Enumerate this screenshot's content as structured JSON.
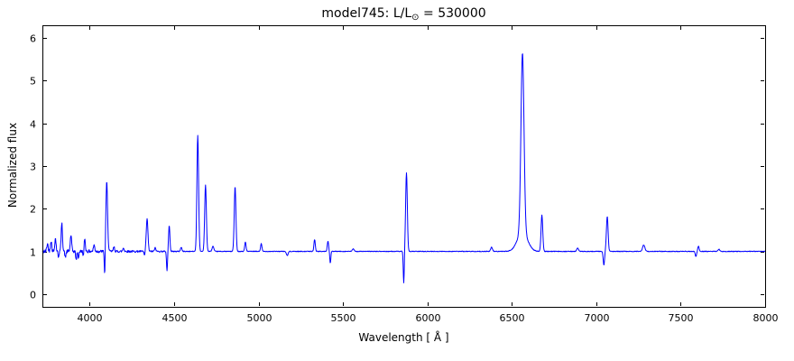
{
  "title": {
    "prefix": "model745: L/L",
    "odot": "⊙",
    "suffix": " = 530000"
  },
  "chart_data": {
    "type": "line",
    "title": "model745: L/L⊙ = 530000",
    "xlabel": "Wavelength [ Å ]",
    "ylabel": "Normalized flux",
    "xlim": [
      3720,
      8000
    ],
    "ylim": [
      -0.3,
      6.3
    ],
    "xticks": [
      4000,
      4500,
      5000,
      5500,
      6000,
      6500,
      7000,
      7500,
      8000
    ],
    "yticks": [
      0,
      1,
      2,
      3,
      4,
      5,
      6
    ],
    "grid": false,
    "legend": "none",
    "line_color": "#0000ff",
    "continuum": 1.0,
    "resolution_angstrom": 2,
    "noise": {
      "seed": 42,
      "base_amp": 0.008,
      "blue_amp": 0.04,
      "blue_cutoff": 4600
    },
    "features": [
      {
        "center": 3750,
        "amp": 0.18,
        "sigma": 4
      },
      {
        "center": 3771,
        "amp": 0.25,
        "sigma": 4
      },
      {
        "center": 3797,
        "amp": 0.3,
        "sigma": 4
      },
      {
        "center": 3815,
        "amp": -0.12,
        "sigma": 3
      },
      {
        "center": 3835,
        "amp": 0.65,
        "sigma": 4
      },
      {
        "center": 3856,
        "amp": -0.15,
        "sigma": 3
      },
      {
        "center": 3889,
        "amp": 0.38,
        "sigma": 4
      },
      {
        "center": 3920,
        "amp": -0.2,
        "sigma": 3
      },
      {
        "center": 3933,
        "amp": -0.15,
        "sigma": 3
      },
      {
        "center": 3964,
        "amp": -0.18,
        "sigma": 3
      },
      {
        "center": 3970,
        "amp": 0.32,
        "sigma": 4
      },
      {
        "center": 4026,
        "amp": 0.15,
        "sigma": 4
      },
      {
        "center": 4089,
        "amp": -0.62,
        "sigma": 2.5
      },
      {
        "center": 4101,
        "amp": 1.62,
        "sigma": 5
      },
      {
        "center": 4144,
        "amp": 0.1,
        "sigma": 4
      },
      {
        "center": 4200,
        "amp": 0.08,
        "sigma": 4
      },
      {
        "center": 4325,
        "amp": -0.1,
        "sigma": 3
      },
      {
        "center": 4340,
        "amp": 0.76,
        "sigma": 5
      },
      {
        "center": 4388,
        "amp": 0.08,
        "sigma": 4
      },
      {
        "center": 4458,
        "amp": -0.45,
        "sigma": 3
      },
      {
        "center": 4471,
        "amp": 0.6,
        "sigma": 4
      },
      {
        "center": 4542,
        "amp": 0.1,
        "sigma": 4
      },
      {
        "center": 4640,
        "amp": 2.72,
        "sigma": 5
      },
      {
        "center": 4686,
        "amp": 1.55,
        "sigma": 5
      },
      {
        "center": 4730,
        "amp": 0.12,
        "sigma": 5
      },
      {
        "center": 4861,
        "amp": 1.52,
        "sigma": 5
      },
      {
        "center": 4922,
        "amp": 0.22,
        "sigma": 4
      },
      {
        "center": 5016,
        "amp": 0.18,
        "sigma": 4
      },
      {
        "center": 5170,
        "amp": -0.1,
        "sigma": 5
      },
      {
        "center": 5332,
        "amp": 0.28,
        "sigma": 4
      },
      {
        "center": 5411,
        "amp": 0.24,
        "sigma": 4
      },
      {
        "center": 5425,
        "amp": -0.28,
        "sigma": 3
      },
      {
        "center": 5560,
        "amp": 0.06,
        "sigma": 5
      },
      {
        "center": 5860,
        "amp": -0.75,
        "sigma": 3
      },
      {
        "center": 5876,
        "amp": 1.84,
        "sigma": 5
      },
      {
        "center": 6380,
        "amp": 0.1,
        "sigma": 5
      },
      {
        "center": 6563,
        "amp": 4.2,
        "sigma": 9
      },
      {
        "center": 6563,
        "amp": 0.45,
        "sigma": 30
      },
      {
        "center": 6678,
        "amp": 0.85,
        "sigma": 5
      },
      {
        "center": 6890,
        "amp": 0.08,
        "sigma": 5
      },
      {
        "center": 7045,
        "amp": -0.32,
        "sigma": 4
      },
      {
        "center": 7065,
        "amp": 0.82,
        "sigma": 5
      },
      {
        "center": 7281,
        "amp": 0.15,
        "sigma": 7
      },
      {
        "center": 7590,
        "amp": -0.12,
        "sigma": 4
      },
      {
        "center": 7605,
        "amp": 0.12,
        "sigma": 4
      },
      {
        "center": 7726,
        "amp": 0.05,
        "sigma": 5
      }
    ]
  },
  "figure": {
    "background": "#ffffff",
    "frame_color": "#000000"
  }
}
